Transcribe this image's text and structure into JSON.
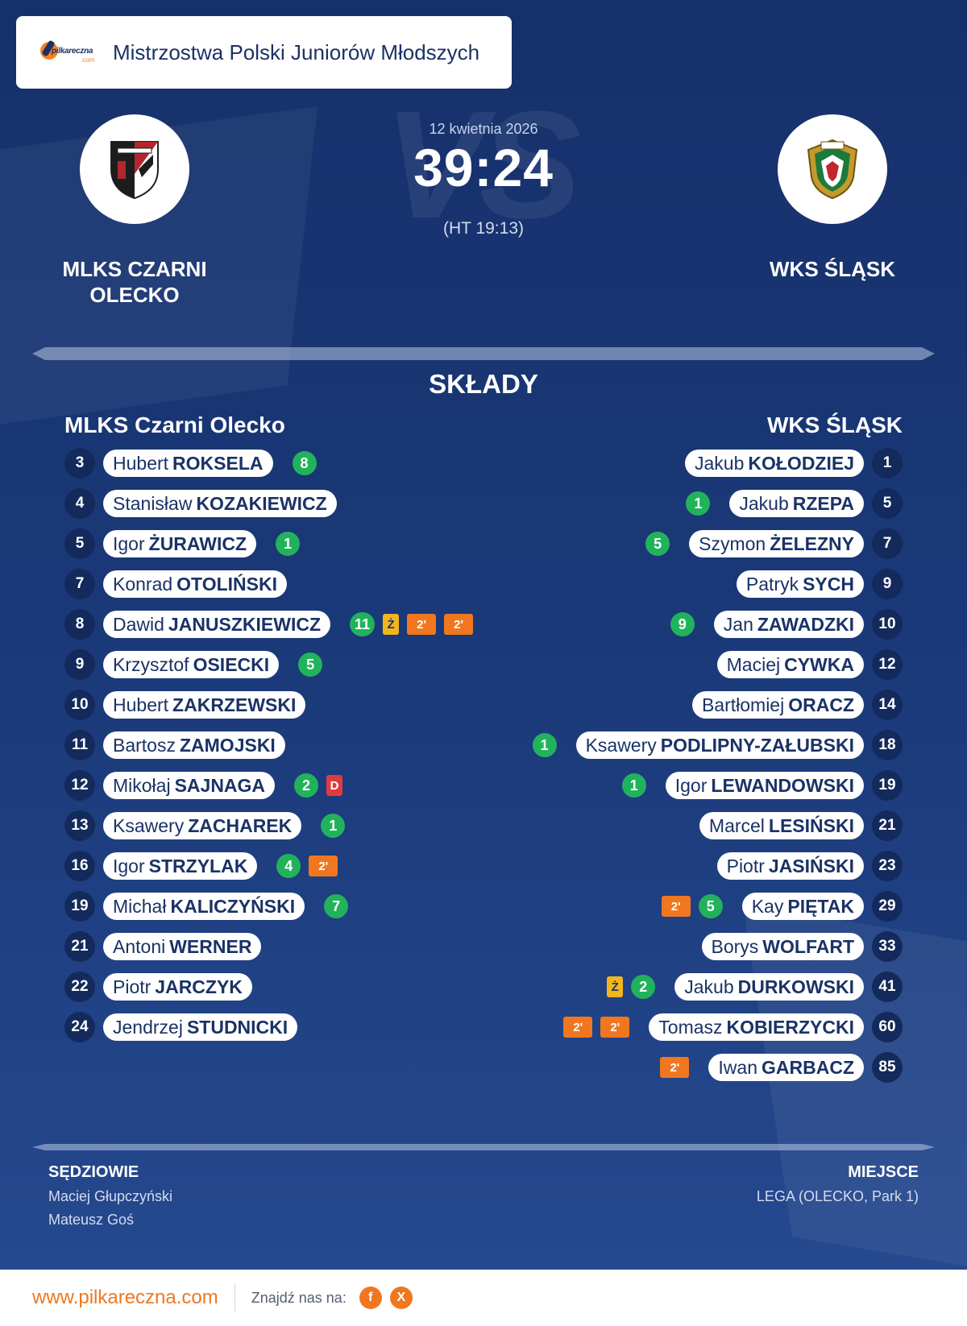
{
  "header": {
    "brand_name": "pilkareczna",
    "brand_suffix": ".com",
    "competition": "Mistrzostwa Polski Juniorów Młodszych"
  },
  "match": {
    "date": "12 kwietnia 2026",
    "score": "39:24",
    "halftime": "(HT 19:13)",
    "watermark": "VS",
    "home_name": "MLKS CZARNI\nOLECKO",
    "away_name": "WKS ŚLĄSK"
  },
  "lineups": {
    "title": "SKŁADY",
    "home_title": "MLKS Czarni Olecko",
    "away_title": "WKS ŚLĄSK",
    "home": [
      {
        "num": "3",
        "first": "Hubert",
        "last": "ROKSELA",
        "goals": "8",
        "cards": []
      },
      {
        "num": "4",
        "first": "Stanisław",
        "last": "KOZAKIEWICZ",
        "goals": "",
        "cards": []
      },
      {
        "num": "5",
        "first": "Igor",
        "last": "ŻURAWICZ",
        "goals": "1",
        "cards": []
      },
      {
        "num": "7",
        "first": "Konrad",
        "last": "OTOLIŃSKI",
        "goals": "",
        "cards": []
      },
      {
        "num": "8",
        "first": "Dawid",
        "last": "JANUSZKIEWICZ",
        "goals": "11",
        "cards": [
          "Ż",
          "2'",
          "2'"
        ]
      },
      {
        "num": "9",
        "first": "Krzysztof",
        "last": "OSIECKI",
        "goals": "5",
        "cards": []
      },
      {
        "num": "10",
        "first": "Hubert",
        "last": "ZAKRZEWSKI",
        "goals": "",
        "cards": []
      },
      {
        "num": "11",
        "first": "Bartosz",
        "last": "ZAMOJSKI",
        "goals": "",
        "cards": []
      },
      {
        "num": "12",
        "first": "Mikołaj",
        "last": "SAJNAGA",
        "goals": "2",
        "cards": [
          "D"
        ]
      },
      {
        "num": "13",
        "first": "Ksawery",
        "last": "ZACHAREK",
        "goals": "1",
        "cards": []
      },
      {
        "num": "16",
        "first": "Igor",
        "last": "STRZYLAK",
        "goals": "4",
        "cards": [
          "2'"
        ]
      },
      {
        "num": "19",
        "first": "Michał",
        "last": "KALICZYŃSKI",
        "goals": "7",
        "cards": []
      },
      {
        "num": "21",
        "first": "Antoni",
        "last": "WERNER",
        "goals": "",
        "cards": []
      },
      {
        "num": "22",
        "first": "Piotr",
        "last": "JARCZYK",
        "goals": "",
        "cards": []
      },
      {
        "num": "24",
        "first": "Jendrzej",
        "last": "STUDNICKI",
        "goals": "",
        "cards": []
      }
    ],
    "away": [
      {
        "num": "1",
        "first": "Jakub",
        "last": "KOŁODZIEJ",
        "goals": "",
        "cards": []
      },
      {
        "num": "5",
        "first": "Jakub",
        "last": "RZEPA",
        "goals": "1",
        "cards": []
      },
      {
        "num": "7",
        "first": "Szymon",
        "last": "ŻELEZNY",
        "goals": "5",
        "cards": []
      },
      {
        "num": "9",
        "first": "Patryk",
        "last": "SYCH",
        "goals": "",
        "cards": []
      },
      {
        "num": "10",
        "first": "Jan",
        "last": "ZAWADZKI",
        "goals": "9",
        "cards": []
      },
      {
        "num": "12",
        "first": "Maciej",
        "last": "CYWKA",
        "goals": "",
        "cards": []
      },
      {
        "num": "14",
        "first": "Bartłomiej",
        "last": "ORACZ",
        "goals": "",
        "cards": []
      },
      {
        "num": "18",
        "first": "Ksawery",
        "last": "PODLIPNY-ZAŁUBSKI",
        "goals": "1",
        "cards": []
      },
      {
        "num": "19",
        "first": "Igor",
        "last": "LEWANDOWSKI",
        "goals": "1",
        "cards": []
      },
      {
        "num": "21",
        "first": "Marcel",
        "last": "LESIŃSKI",
        "goals": "",
        "cards": []
      },
      {
        "num": "23",
        "first": "Piotr",
        "last": "JASIŃSKI",
        "goals": "",
        "cards": []
      },
      {
        "num": "29",
        "first": "Kay",
        "last": "PIĘTAK",
        "goals": "5",
        "cards": [
          "2'"
        ]
      },
      {
        "num": "33",
        "first": "Borys",
        "last": "WOLFART",
        "goals": "",
        "cards": []
      },
      {
        "num": "41",
        "first": "Jakub",
        "last": "DURKOWSKI",
        "goals": "2",
        "cards": [
          "Ż"
        ]
      },
      {
        "num": "60",
        "first": "Tomasz",
        "last": "KOBIERZYCKI",
        "goals": "",
        "cards": [
          "2'",
          "2'"
        ]
      },
      {
        "num": "85",
        "first": "Iwan",
        "last": "GARBACZ",
        "goals": "",
        "cards": [
          "2'"
        ]
      }
    ]
  },
  "officials": {
    "label": "SĘDZIOWIE",
    "referees": [
      "Maciej Głupczyński",
      "Mateusz Goś"
    ]
  },
  "venue": {
    "label": "MIEJSCE",
    "name": "LEGA (OLECKO, Park 1)"
  },
  "footer": {
    "site": "www.pilkareczna.com",
    "follow_label": "Znajdź nas na:",
    "social": [
      {
        "name": "facebook",
        "glyph": "f",
        "icon": "facebook-icon"
      },
      {
        "name": "x",
        "glyph": "X",
        "icon": "x-icon"
      }
    ]
  },
  "colors": {
    "background": "#1b3570",
    "accent_orange": "#f07720",
    "goal_green": "#21b35c",
    "yellow_card": "#f3b51e",
    "red_card": "#e03c3c"
  }
}
